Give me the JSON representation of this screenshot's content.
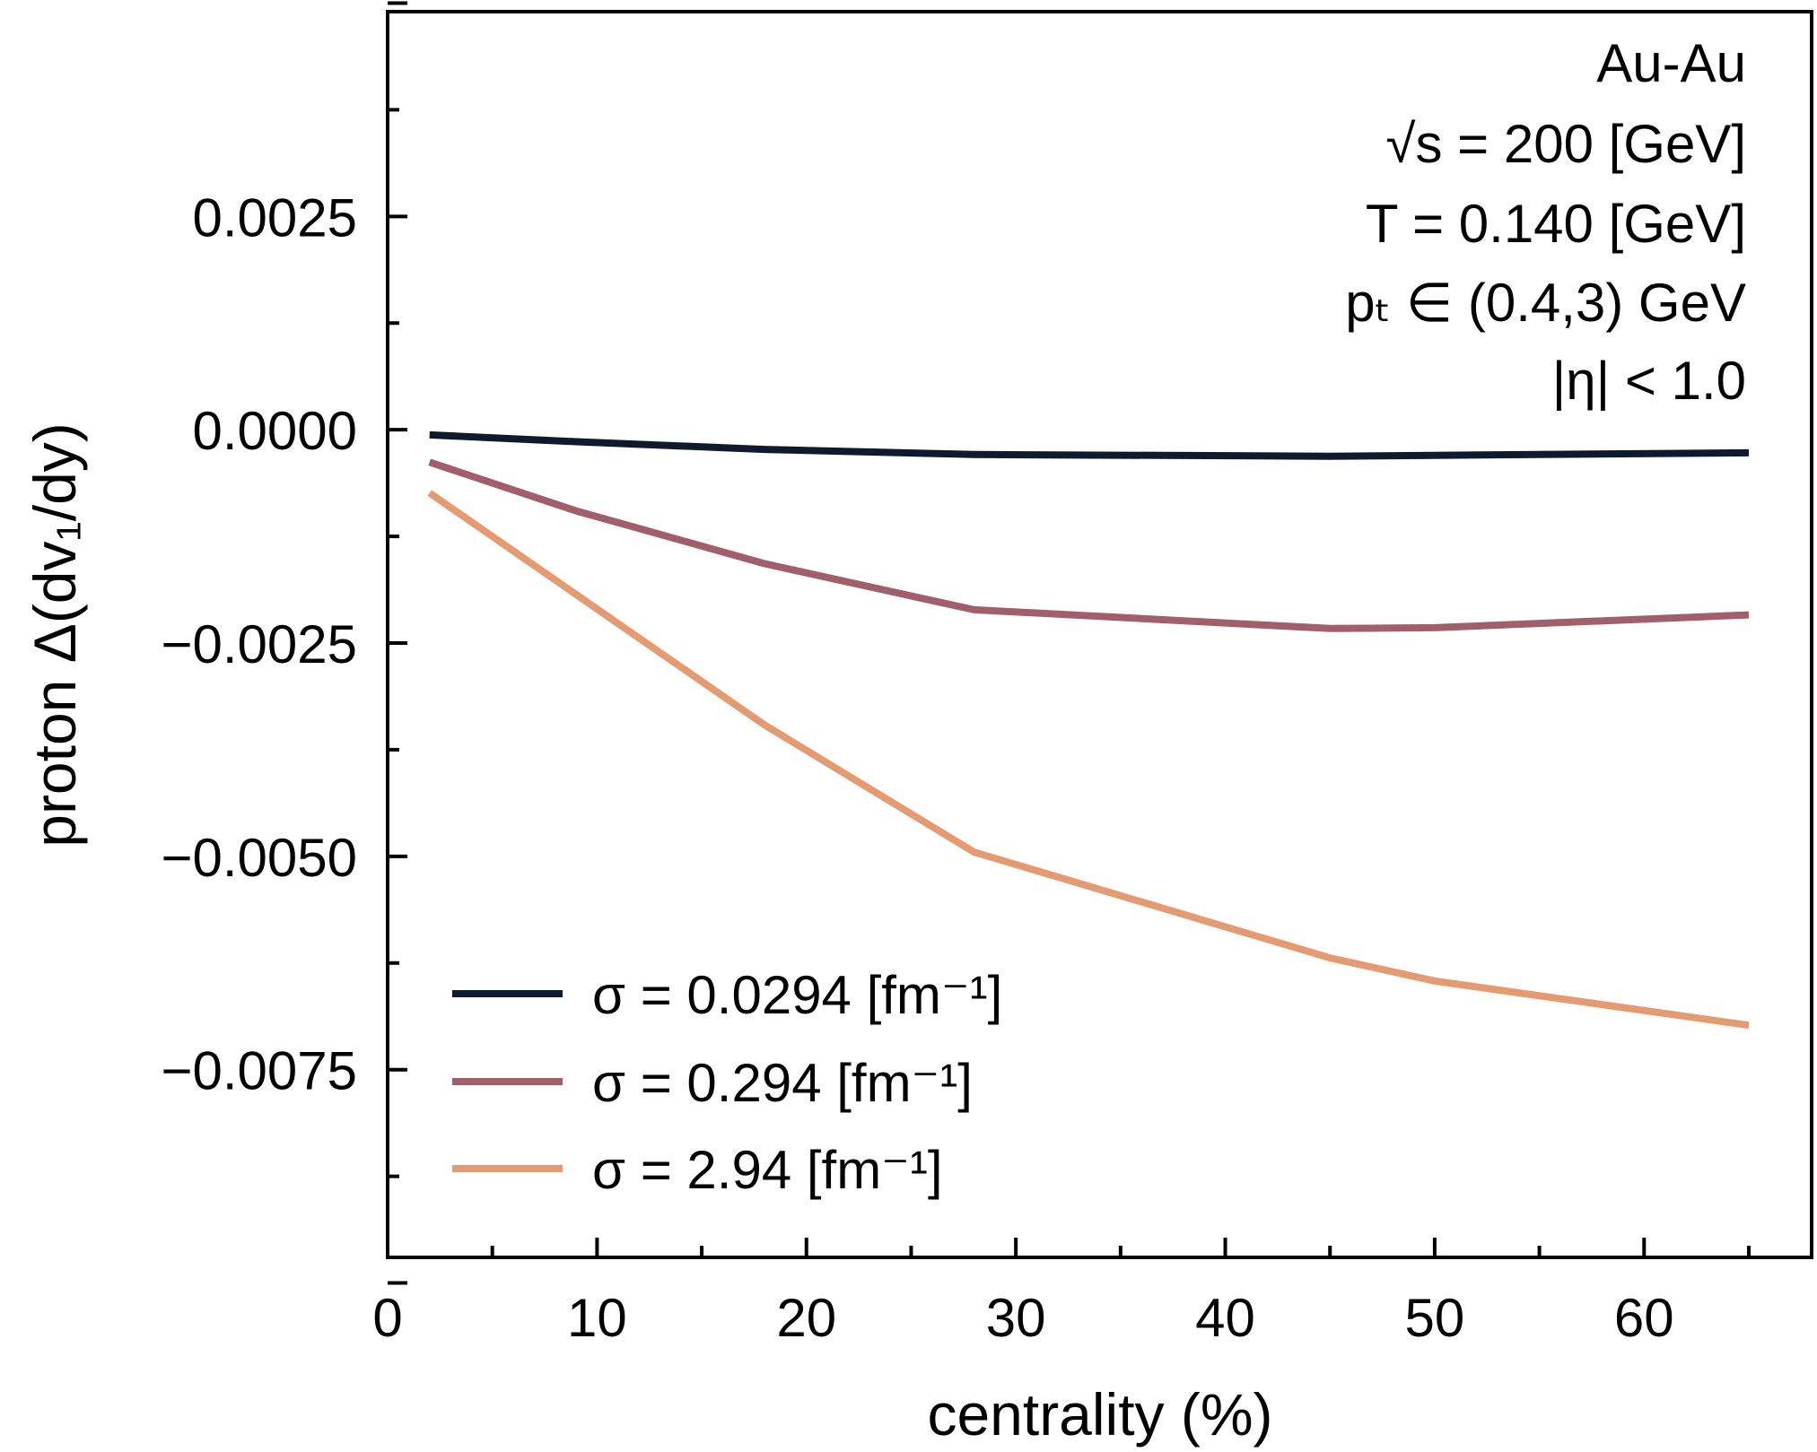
{
  "chart_data": {
    "type": "line",
    "title": "",
    "xlabel": "centrality (%)",
    "ylabel": "proton Δ(dv₁/dy)",
    "xlim": [
      0,
      68
    ],
    "ylim": [
      -0.0097,
      0.0049
    ],
    "xticks": [
      0,
      10,
      20,
      30,
      40,
      50,
      60
    ],
    "xtick_labels": [
      "0",
      "10",
      "20",
      "30",
      "40",
      "50",
      "60"
    ],
    "yticks": [
      0.0025,
      0.0,
      -0.0025,
      -0.005,
      -0.0075
    ],
    "ytick_labels": [
      "0.0025",
      "0.0000",
      "−0.0025",
      "−0.0050",
      "−0.0075"
    ],
    "grid": false,
    "legend_position": "lower-left",
    "annotations": [
      "Au-Au",
      "√s = 200 [GeV]",
      "T = 0.140 [GeV]",
      "pₜ ∈ (0.4,3) GeV",
      "|η| < 1.0"
    ],
    "x": [
      2,
      9,
      18,
      28,
      45,
      50,
      65
    ],
    "series": [
      {
        "name": "σ = 0.0294 [fm⁻¹]",
        "color": "#0f1a2e",
        "values": [
          -6e-05,
          -0.00014,
          -0.00023,
          -0.00029,
          -0.00031,
          -0.0003,
          -0.00027
        ]
      },
      {
        "name": "σ = 0.294 [fm⁻¹]",
        "color": "#a05f6a",
        "values": [
          -0.00038,
          -0.00095,
          -0.00157,
          -0.00211,
          -0.00233,
          -0.00232,
          -0.00217
        ]
      },
      {
        "name": "σ = 2.94 [fm⁻¹]",
        "color": "#e59b72",
        "values": [
          -0.00074,
          -0.00193,
          -0.00346,
          -0.00495,
          -0.00619,
          -0.00646,
          -0.00698
        ]
      }
    ]
  }
}
